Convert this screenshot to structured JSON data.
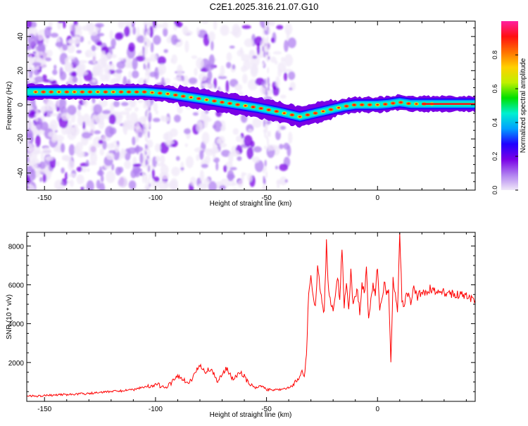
{
  "figure": {
    "title": "C2E1.2025.316.21.07.G10"
  },
  "colors": {
    "snr_line": "#ff0000",
    "axes": "#000000",
    "colormap": [
      "#f0e8f8",
      "#b080f0",
      "#7a00e6",
      "#2000ff",
      "#00a0ff",
      "#00f0d0",
      "#00e000",
      "#c0f000",
      "#ffd000",
      "#ff7000",
      "#ff1010",
      "#ff20a0"
    ]
  },
  "chart_data": [
    {
      "type": "heatmap",
      "panel": "top",
      "xlabel": "Height of straight line (km)",
      "ylabel": "Frequency (Hz)",
      "xlim": [
        -158,
        44
      ],
      "ylim": [
        -50,
        49
      ],
      "x_ticks": [
        -150,
        -100,
        -50,
        0
      ],
      "y_ticks": [
        -40,
        -20,
        0,
        20,
        40
      ],
      "colorbar": {
        "label": "Normalized spectral amplitude",
        "range": [
          0,
          1
        ],
        "ticks": [
          "0.0",
          "0.2",
          "0.4",
          "0.6",
          "0.8"
        ]
      },
      "ridge": {
        "name": "dominant frequency",
        "x": [
          -157,
          -140,
          -120,
          -105,
          -95,
          -85,
          -75,
          -65,
          -55,
          -45,
          -40,
          -35,
          -30,
          -25,
          -20,
          -15,
          -10,
          -5,
          0,
          5,
          10,
          15,
          20,
          44
        ],
        "y": [
          7.5,
          7.5,
          7.5,
          7.5,
          6.5,
          4.5,
          2.5,
          0.5,
          -1.5,
          -4,
          -5.5,
          -7,
          -5.5,
          -4,
          -2.5,
          -1,
          0,
          0,
          0,
          0.5,
          1.5,
          0.5,
          0.5,
          0.5
        ]
      }
    },
    {
      "type": "line",
      "panel": "bottom",
      "xlabel": "Height of straight line (km)",
      "ylabel": "SNR (10 * v/v)",
      "xlim": [
        -158,
        44
      ],
      "ylim": [
        0,
        8700
      ],
      "x_ticks": [
        -150,
        -100,
        -50,
        0
      ],
      "y_ticks": [
        2000,
        4000,
        6000,
        8000
      ],
      "series": [
        {
          "x": [
            -158,
            -150,
            -140,
            -130,
            -120,
            -110,
            -100,
            -95,
            -90,
            -85,
            -80,
            -78,
            -75,
            -72,
            -70,
            -68,
            -65,
            -62,
            -60,
            -58,
            -55,
            -52,
            -50,
            -45,
            -40,
            -36,
            -34,
            -33,
            -32,
            -31,
            -30,
            -28,
            -27,
            -26,
            -25,
            -24,
            -23,
            -22,
            -20,
            -18,
            -17,
            -16,
            -15,
            -14,
            -13,
            -12,
            -11,
            -10,
            -9,
            -8,
            -7,
            -6,
            -5,
            -4,
            -3,
            -2,
            -1,
            0,
            1,
            2,
            3,
            4,
            5,
            6,
            7,
            8,
            9,
            10,
            11,
            12,
            13,
            14,
            15,
            16,
            18,
            20,
            22,
            24,
            26,
            28,
            30,
            32,
            34,
            36,
            38,
            40,
            42,
            44
          ],
          "y": [
            250,
            300,
            350,
            400,
            500,
            600,
            900,
            700,
            1300,
            900,
            1900,
            1500,
            1700,
            1000,
            1400,
            1700,
            1100,
            1500,
            1300,
            900,
            700,
            800,
            600,
            600,
            700,
            1100,
            1600,
            1200,
            2500,
            5500,
            6400,
            4800,
            7000,
            6000,
            5200,
            4500,
            8200,
            5500,
            4600,
            6500,
            5200,
            7900,
            5000,
            6200,
            4700,
            6800,
            5000,
            5500,
            5800,
            4500,
            6200,
            5500,
            6800,
            4200,
            5300,
            6000,
            5500,
            7000,
            4800,
            5200,
            6100,
            5600,
            5800,
            1900,
            6200,
            5500,
            4600,
            8600,
            5300,
            4800,
            5500,
            5600,
            5100,
            5800,
            5400,
            5600,
            5700,
            5800,
            5600,
            5700,
            5600,
            5600,
            5500,
            5500,
            5600,
            5400,
            5300,
            5200
          ]
        }
      ]
    }
  ]
}
